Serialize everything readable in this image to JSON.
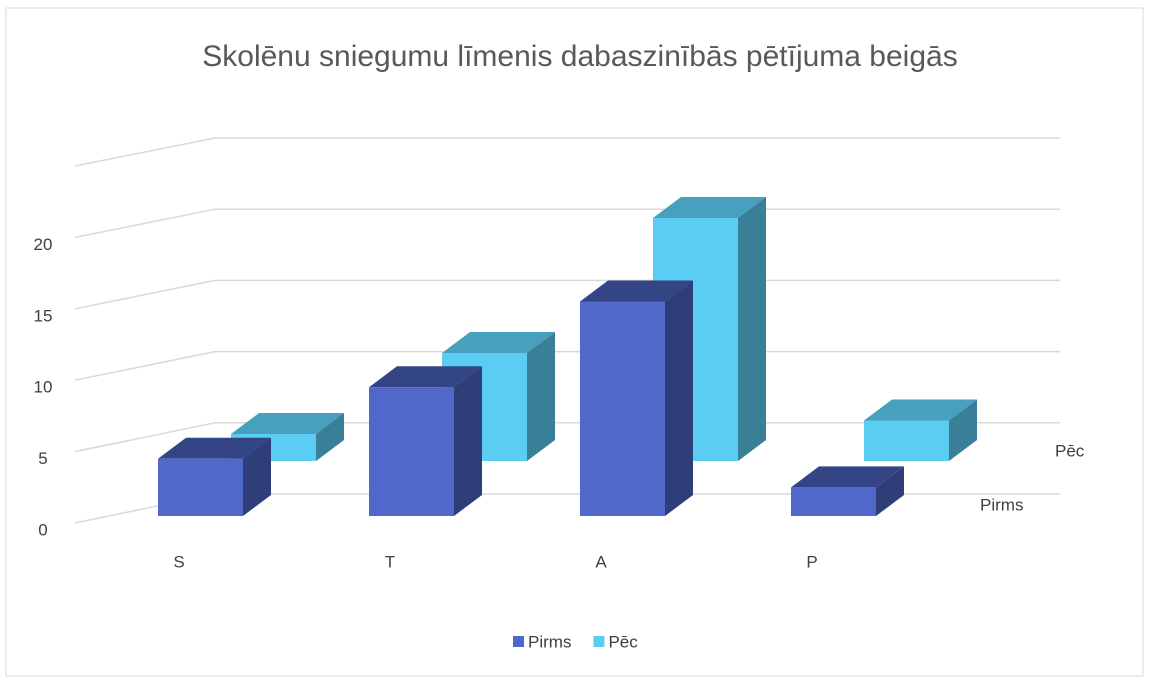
{
  "chart_data": {
    "type": "bar3d",
    "title": "Skolēnu sniegumu līmenis dabaszinībās pētījuma beigās",
    "categories": [
      "S",
      "T",
      "A",
      "P"
    ],
    "series": [
      {
        "name": "Pirms",
        "color": "#4f68c9",
        "values": [
          4,
          9,
          15,
          2
        ]
      },
      {
        "name": "Pēc",
        "color": "#5bcdf3",
        "values": [
          2,
          8,
          18,
          3
        ]
      }
    ],
    "ylim": [
      0,
      25
    ],
    "yticks": [
      0,
      5,
      10,
      15,
      20
    ],
    "grid": true,
    "legend": "bottom"
  }
}
